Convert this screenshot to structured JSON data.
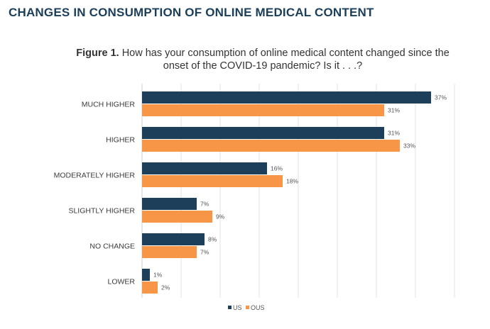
{
  "header": {
    "title": "CHANGES IN CONSUMPTION OF ONLINE MEDICAL CONTENT",
    "figure_label": "Figure 1.",
    "figure_question": "How has your consumption of online medical content changed since the onset of the COVID-19 pandemic? Is it . . .?"
  },
  "chart_data": {
    "type": "bar",
    "orientation": "horizontal",
    "categories": [
      "MUCH HIGHER",
      "HIGHER",
      "MODERATELY HIGHER",
      "SLIGHTLY HIGHER",
      "NO CHANGE",
      "LOWER"
    ],
    "series": [
      {
        "name": "US",
        "color": "#1d3f5a",
        "values": [
          37,
          31,
          16,
          7,
          8,
          1
        ],
        "labels": [
          "37%",
          "31%",
          "16%",
          "7%",
          "8%",
          "1%"
        ]
      },
      {
        "name": "OUS",
        "color": "#f79646",
        "values": [
          31,
          33,
          18,
          9,
          7,
          2
        ],
        "labels": [
          "31%",
          "33%",
          "18%",
          "9%",
          "7%",
          "2%"
        ]
      }
    ],
    "xlim": [
      0,
      40
    ],
    "grid": true,
    "legend": "bottom-center"
  }
}
